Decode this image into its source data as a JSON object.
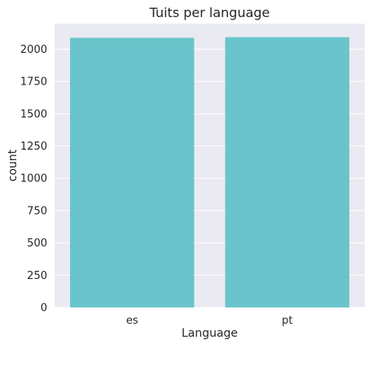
{
  "chart_data": {
    "type": "bar",
    "title": "Tuits per language",
    "xlabel": "Language",
    "ylabel": "count",
    "categories": [
      "es",
      "pt"
    ],
    "values": [
      2088,
      2093
    ],
    "ylim": [
      0,
      2198
    ],
    "yticks": [
      0,
      250,
      500,
      750,
      1000,
      1250,
      1500,
      1750,
      2000
    ],
    "grid": true,
    "legend": "none",
    "colors": {
      "bar": "#69c5cb",
      "plot_background": "#eaeaf2",
      "grid": "#ffffff",
      "text": "#262626"
    }
  }
}
